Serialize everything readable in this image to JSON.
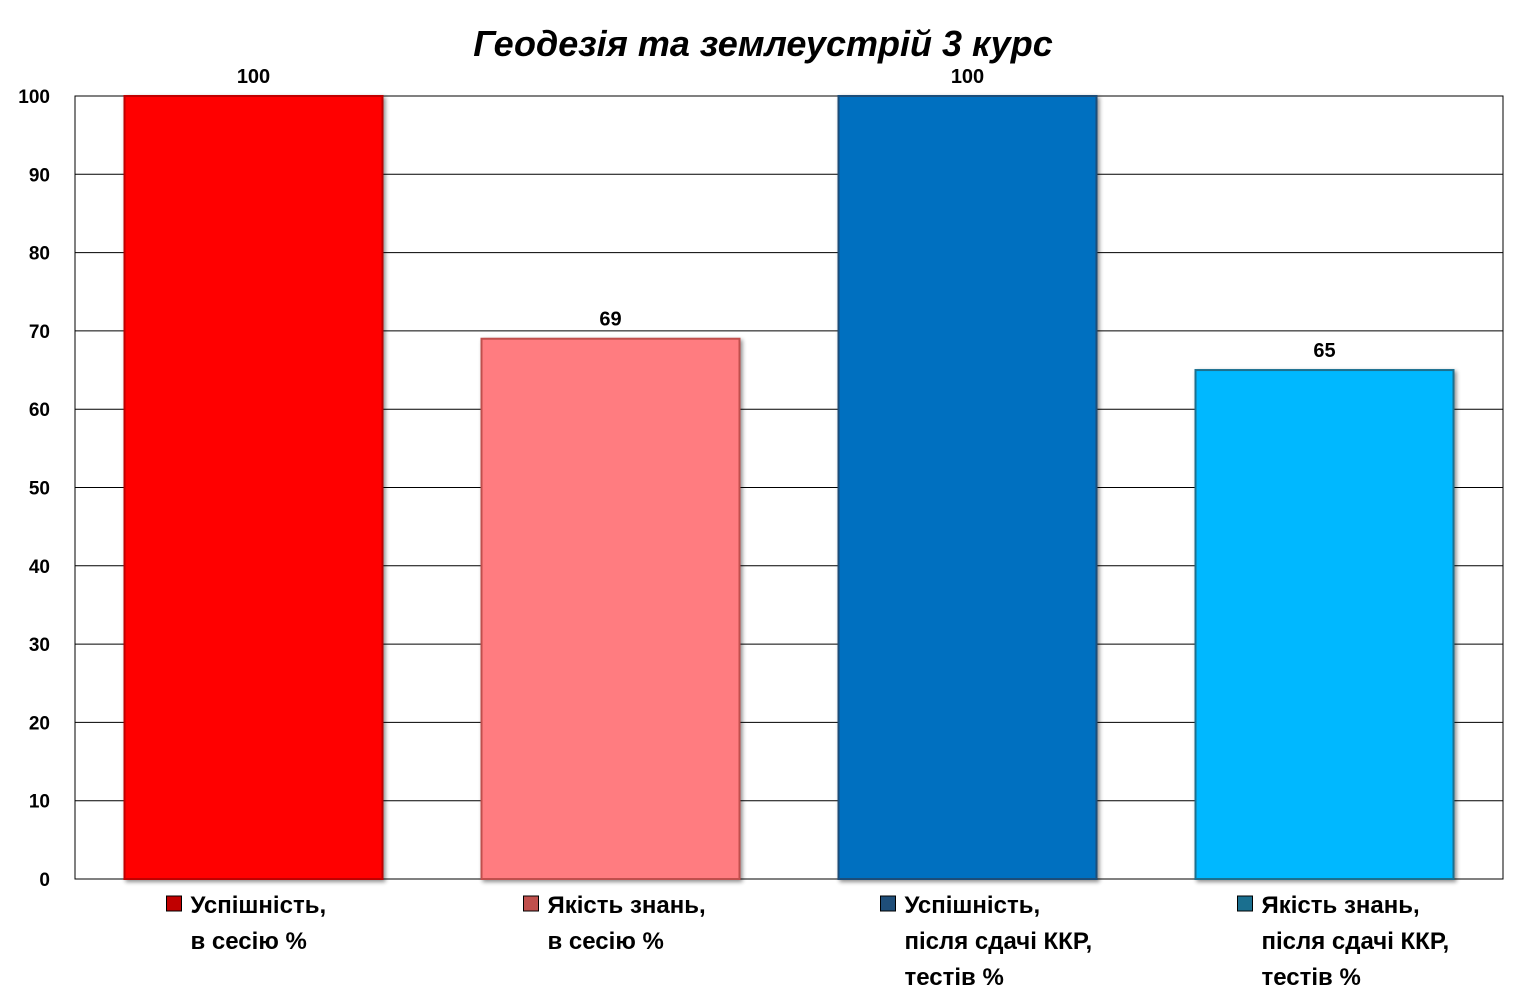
{
  "chart_data": {
    "type": "bar",
    "title": "Геодезія та землеустрій 3 курс",
    "xlabel": "",
    "ylabel": "",
    "ylim": [
      0,
      100
    ],
    "yticks": [
      0,
      10,
      20,
      30,
      40,
      50,
      60,
      70,
      80,
      90,
      100
    ],
    "grid": true,
    "legend_position": "bottom",
    "series": [
      {
        "name": "Успішність, в сесію %",
        "legend_lines": [
          "Успішність,",
          "в сесію %"
        ],
        "value": 100,
        "color": "#ff0000",
        "marker_color": "#c00000"
      },
      {
        "name": "Якість знань, в сесію %",
        "legend_lines": [
          "Якість знань,",
          "в сесію %"
        ],
        "value": 69,
        "color": "#ff7c80",
        "marker_color": "#c0504d"
      },
      {
        "name": "Успішність, після сдачі ККР, тестів %",
        "legend_lines": [
          "Успішність,",
          "після сдачі ККР,",
          "тестів %"
        ],
        "value": 100,
        "color": "#0070c0",
        "marker_color": "#1f4e79"
      },
      {
        "name": "Якість знань, після сдачі ККР, тестів %",
        "legend_lines": [
          "Якість знань,",
          "після сдачі ККР,",
          "тестів %"
        ],
        "value": 65,
        "color": "#00b8ff",
        "marker_color": "#1a6f8f"
      }
    ]
  }
}
